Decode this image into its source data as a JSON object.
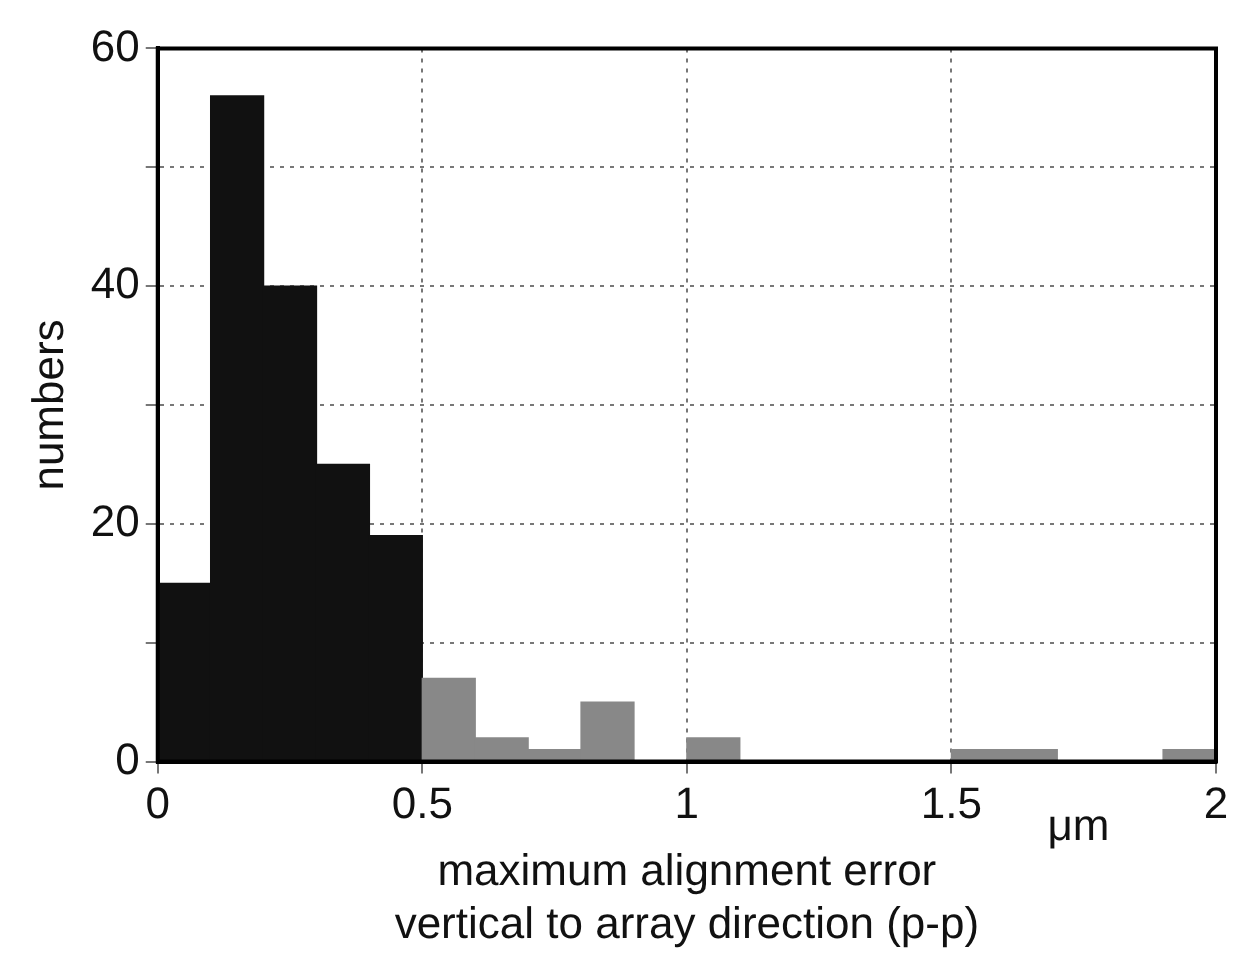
{
  "chart_data": {
    "type": "histogram",
    "bins": [
      0,
      0.1,
      0.2,
      0.3,
      0.4,
      0.5,
      0.6,
      0.7,
      0.8,
      0.9,
      1.0,
      1.1,
      1.2,
      1.3,
      1.4,
      1.5,
      1.6,
      1.7,
      1.8,
      1.9,
      2.0
    ],
    "values": [
      15,
      56,
      40,
      25,
      19,
      7,
      2,
      1,
      5,
      0,
      2,
      0,
      0,
      0,
      0,
      1,
      1,
      0,
      0,
      1
    ],
    "colors": [
      "#111111",
      "#111111",
      "#111111",
      "#111111",
      "#111111",
      "#888888",
      "#888888",
      "#888888",
      "#888888",
      "#888888",
      "#888888",
      "#888888",
      "#888888",
      "#888888",
      "#888888",
      "#888888",
      "#888888",
      "#888888",
      "#888888",
      "#888888"
    ],
    "xlabel": "maximum alignment error\nvertical to array direction (p-p)",
    "ylabel": "numbers",
    "annotations": [
      "μm"
    ],
    "xlim": [
      0,
      2
    ],
    "xticks": [
      0,
      0.5,
      1,
      1.5,
      2
    ],
    "ylim": [
      0,
      60
    ],
    "yticks": [
      0,
      {
        "value": 10,
        "label": null
      },
      20,
      {
        "value": 30,
        "label": null
      },
      40,
      {
        "value": 50,
        "label": null
      },
      60
    ],
    "grid": true
  }
}
